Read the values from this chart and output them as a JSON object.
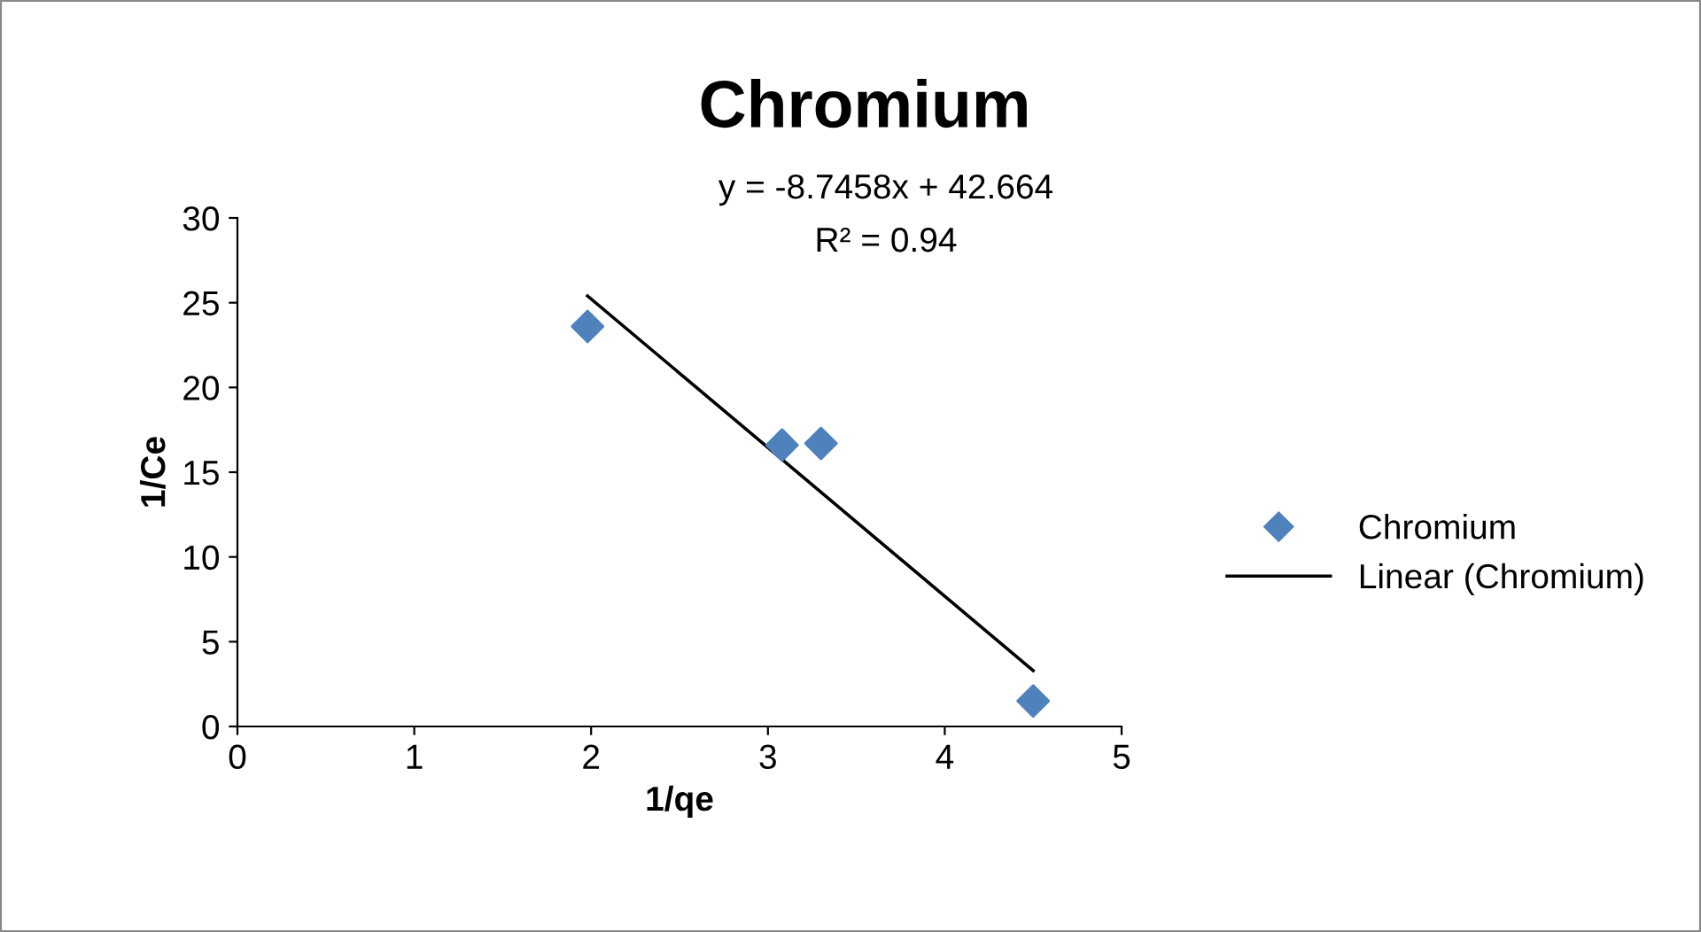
{
  "chart_data": {
    "type": "scatter",
    "title": "Chromium",
    "xlabel": "1/qe",
    "ylabel": "1/Ce",
    "annotations": [
      "y = -8.7458x + 42.664",
      "R² = 0.94"
    ],
    "series": [
      {
        "name": "Chromium",
        "color": "#4f81bd",
        "marker": "diamond",
        "x": [
          1.98,
          3.08,
          3.3,
          4.5
        ],
        "values": [
          23.6,
          16.6,
          16.7,
          1.5
        ]
      },
      {
        "name": "Linear (Chromium)",
        "type": "line",
        "color": "#000000",
        "marker": "none",
        "line_style": "solid",
        "x": [
          1.98,
          4.5
        ],
        "values": [
          25.4,
          3.3
        ]
      }
    ],
    "xlim": [
      0,
      5
    ],
    "xticks": [
      0,
      1,
      2,
      3,
      4,
      5
    ],
    "ylim": [
      0,
      30
    ],
    "yticks": [
      0,
      5,
      10,
      15,
      20,
      25,
      30
    ],
    "grid": false,
    "legend": "right"
  }
}
